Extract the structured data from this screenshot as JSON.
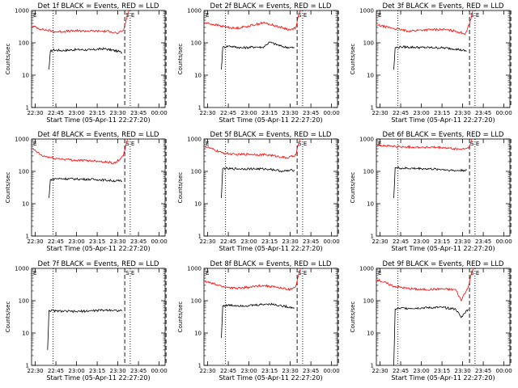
{
  "figure": {
    "background": "#ffffff",
    "colors": {
      "events": "#000000",
      "lld": "#ff0000",
      "axes": "#000000"
    }
  },
  "chart_data": [
    {
      "type": "line",
      "detector": "1f",
      "title": "Det 1f BLACK = Events, RED = LLD",
      "xlabel": "Start Time (05-Apr-11 22:27:20)",
      "ylabel": "Counts/sec",
      "x_ticks": [
        "22:30",
        "22:45",
        "23:00",
        "23:15",
        "23:30",
        "23:45",
        "00:00"
      ],
      "y_ticks": [
        "1",
        "10",
        "100",
        "1000"
      ],
      "yscale": "log",
      "ylim": [
        1,
        1000
      ],
      "markers": {
        "S": "23:35",
        "E": "23:39"
      },
      "series": [
        {
          "name": "Events",
          "color": "#000000",
          "x": [
            "22:40",
            "22:41",
            "22:43",
            "22:50",
            "23:00",
            "23:10",
            "23:20",
            "23:30",
            "23:33"
          ],
          "y": [
            15,
            55,
            60,
            58,
            62,
            60,
            66,
            55,
            50
          ]
        },
        {
          "name": "LLD",
          "color": "#ff0000",
          "x": [
            "22:28",
            "22:35",
            "22:45",
            "23:00",
            "23:15",
            "23:25",
            "23:30",
            "23:34",
            "23:36",
            "23:38"
          ],
          "y": [
            330,
            260,
            220,
            235,
            230,
            225,
            195,
            240,
            500,
            1000
          ]
        }
      ]
    },
    {
      "type": "line",
      "detector": "2f",
      "title": "Det 2f BLACK = Events, RED = LLD",
      "xlabel": "Start Time (05-Apr-11 22:27:20)",
      "ylabel": "Counts/sec",
      "x_ticks": [
        "22:30",
        "22:45",
        "23:00",
        "23:15",
        "23:30",
        "23:45",
        "00:00"
      ],
      "y_ticks": [
        "1",
        "10",
        "100",
        "1000"
      ],
      "yscale": "log",
      "ylim": [
        1,
        1000
      ],
      "markers": {
        "S": "23:35",
        "E": "23:39"
      },
      "series": [
        {
          "name": "Events",
          "color": "#000000",
          "x": [
            "22:40",
            "22:41",
            "22:45",
            "22:55",
            "23:05",
            "23:10",
            "23:15",
            "23:25",
            "23:33"
          ],
          "y": [
            15,
            72,
            80,
            70,
            75,
            72,
            105,
            75,
            70
          ]
        },
        {
          "name": "LLD",
          "color": "#ff0000",
          "x": [
            "22:28",
            "22:40",
            "22:50",
            "23:00",
            "23:10",
            "23:20",
            "23:30",
            "23:34",
            "23:36",
            "23:38"
          ],
          "y": [
            420,
            330,
            280,
            330,
            420,
            330,
            250,
            300,
            700,
            1200
          ]
        }
      ]
    },
    {
      "type": "line",
      "detector": "3f",
      "title": "Det 3f BLACK = Events, RED = LLD",
      "xlabel": "Start Time (05-Apr-11 22:27:20)",
      "ylabel": "Counts/sec",
      "x_ticks": [
        "22:30",
        "22:45",
        "23:00",
        "23:15",
        "23:30",
        "23:45",
        "00:00"
      ],
      "y_ticks": [
        "1",
        "10",
        "100",
        "1000"
      ],
      "yscale": "log",
      "ylim": [
        1,
        1000
      ],
      "markers": {
        "S": "23:35",
        "E": "23:39"
      },
      "series": [
        {
          "name": "Events",
          "color": "#000000",
          "x": [
            "22:40",
            "22:41",
            "22:45",
            "23:00",
            "23:15",
            "23:25",
            "23:33"
          ],
          "y": [
            15,
            70,
            75,
            72,
            70,
            65,
            55
          ]
        },
        {
          "name": "LLD",
          "color": "#ff0000",
          "x": [
            "22:28",
            "22:40",
            "22:50",
            "23:00",
            "23:15",
            "23:25",
            "23:32",
            "23:35",
            "23:38"
          ],
          "y": [
            350,
            280,
            230,
            250,
            260,
            230,
            190,
            400,
            1200
          ]
        }
      ]
    },
    {
      "type": "line",
      "detector": "4f",
      "title": "Det 4f BLACK = Events, RED = LLD",
      "xlabel": "Start Time (05-Apr-11 22:27:20)",
      "ylabel": "Counts/sec",
      "x_ticks": [
        "22:30",
        "22:45",
        "23:00",
        "23:15",
        "23:30",
        "23:45",
        "00:00"
      ],
      "y_ticks": [
        "1",
        "10",
        "100",
        "1000"
      ],
      "yscale": "log",
      "ylim": [
        1,
        1000
      ],
      "markers": {
        "S": "23:35",
        "E": "23:39"
      },
      "series": [
        {
          "name": "Events",
          "color": "#000000",
          "x": [
            "22:40",
            "22:41",
            "22:45",
            "23:00",
            "23:15",
            "23:25",
            "23:33"
          ],
          "y": [
            15,
            55,
            60,
            58,
            56,
            52,
            50
          ]
        },
        {
          "name": "LLD",
          "color": "#ff0000",
          "x": [
            "22:28",
            "22:35",
            "22:45",
            "23:00",
            "23:15",
            "23:28",
            "23:34",
            "23:36",
            "23:38"
          ],
          "y": [
            500,
            300,
            250,
            220,
            210,
            180,
            300,
            700,
            1200
          ]
        }
      ]
    },
    {
      "type": "line",
      "detector": "5f",
      "title": "Det 5f BLACK = Events, RED = LLD",
      "xlabel": "Start Time (05-Apr-11 22:27:20)",
      "ylabel": "Counts/sec",
      "x_ticks": [
        "22:30",
        "22:45",
        "23:00",
        "23:15",
        "23:30",
        "23:45",
        "00:00"
      ],
      "y_ticks": [
        "1",
        "10",
        "100",
        "1000"
      ],
      "yscale": "log",
      "ylim": [
        1,
        1000
      ],
      "markers": {
        "S": "23:35",
        "E": "23:39"
      },
      "series": [
        {
          "name": "Events",
          "color": "#000000",
          "x": [
            "22:40",
            "22:41",
            "22:45",
            "23:00",
            "23:15",
            "23:25",
            "23:33"
          ],
          "y": [
            15,
            125,
            120,
            120,
            118,
            100,
            110
          ]
        },
        {
          "name": "LLD",
          "color": "#ff0000",
          "x": [
            "22:28",
            "22:40",
            "22:50",
            "23:00",
            "23:15",
            "23:28",
            "23:34",
            "23:36",
            "23:38"
          ],
          "y": [
            600,
            380,
            330,
            340,
            320,
            260,
            320,
            700,
            1200
          ]
        }
      ]
    },
    {
      "type": "line",
      "detector": "6f",
      "title": "Det 6f BLACK = Events, RED = LLD",
      "xlabel": "Start Time (05-Apr-11 22:27:20)",
      "ylabel": "Counts/sec",
      "x_ticks": [
        "22:30",
        "22:45",
        "23:00",
        "23:15",
        "23:30",
        "23:45",
        "00:00"
      ],
      "y_ticks": [
        "1",
        "10",
        "100",
        "1000"
      ],
      "yscale": "log",
      "ylim": [
        1,
        1000
      ],
      "markers": {
        "S": "23:35",
        "E": "23:39"
      },
      "series": [
        {
          "name": "Events",
          "color": "#000000",
          "x": [
            "22:40",
            "22:41",
            "22:45",
            "23:00",
            "23:15",
            "23:25",
            "23:33"
          ],
          "y": [
            15,
            130,
            125,
            122,
            115,
            105,
            110
          ]
        },
        {
          "name": "LLD",
          "color": "#ff0000",
          "x": [
            "22:28",
            "22:45",
            "23:00",
            "23:15",
            "23:28",
            "23:34",
            "23:36",
            "23:38"
          ],
          "y": [
            650,
            570,
            560,
            540,
            480,
            520,
            800,
            1300
          ]
        }
      ]
    },
    {
      "type": "line",
      "detector": "7f",
      "title": "Det 7f BLACK = Events, RED = LLD",
      "xlabel": "Start Time (05-Apr-11 22:27:20)",
      "ylabel": "Counts/sec",
      "x_ticks": [
        "22:30",
        "22:45",
        "23:00",
        "23:15",
        "23:30",
        "23:45",
        "00:00"
      ],
      "y_ticks": [
        "1",
        "10",
        "100",
        "1000"
      ],
      "yscale": "log",
      "ylim": [
        1,
        1000
      ],
      "markers": {
        "S": "23:35",
        "E": "23:39"
      },
      "series": [
        {
          "name": "Events",
          "color": "#000000",
          "x": [
            "22:39",
            "22:40",
            "22:45",
            "23:00",
            "23:15",
            "23:25",
            "23:33"
          ],
          "y": [
            3,
            50,
            48,
            46,
            50,
            52,
            48
          ]
        }
      ]
    },
    {
      "type": "line",
      "detector": "8f",
      "title": "Det 8f BLACK = Events, RED = LLD",
      "xlabel": "Start Time (05-Apr-11 22:27:20)",
      "ylabel": "Counts/sec",
      "x_ticks": [
        "22:30",
        "22:45",
        "23:00",
        "23:15",
        "23:30",
        "23:45",
        "00:00"
      ],
      "y_ticks": [
        "1",
        "10",
        "100",
        "1000"
      ],
      "yscale": "log",
      "ylim": [
        1,
        1000
      ],
      "markers": {
        "S": "23:35",
        "E": "23:39"
      },
      "series": [
        {
          "name": "Events",
          "color": "#000000",
          "x": [
            "22:40",
            "22:41",
            "22:45",
            "23:00",
            "23:15",
            "23:25",
            "23:33"
          ],
          "y": [
            7,
            70,
            72,
            70,
            80,
            68,
            60
          ]
        },
        {
          "name": "LLD",
          "color": "#ff0000",
          "x": [
            "22:28",
            "22:40",
            "22:50",
            "23:00",
            "23:10",
            "23:20",
            "23:30",
            "23:34",
            "23:36",
            "23:38"
          ],
          "y": [
            400,
            280,
            240,
            260,
            300,
            260,
            220,
            280,
            600,
            1200
          ]
        }
      ]
    },
    {
      "type": "line",
      "detector": "9f",
      "title": "Det 9f BLACK = Events, RED = LLD",
      "xlabel": "Start Time (05-Apr-11 22:27:20)",
      "ylabel": "Counts/sec",
      "x_ticks": [
        "22:30",
        "22:45",
        "23:00",
        "23:15",
        "23:30",
        "23:45",
        "00:00"
      ],
      "y_ticks": [
        "1",
        "10",
        "100",
        "1000"
      ],
      "yscale": "log",
      "ylim": [
        1,
        1000
      ],
      "markers": {
        "S": "23:35",
        "E": "23:39"
      },
      "series": [
        {
          "name": "Events",
          "color": "#000000",
          "x": [
            "22:40",
            "22:41",
            "22:45",
            "23:00",
            "23:15",
            "23:25",
            "23:29",
            "23:31",
            "23:34"
          ],
          "y": [
            1,
            55,
            58,
            60,
            62,
            55,
            30,
            40,
            55
          ]
        },
        {
          "name": "LLD",
          "color": "#ff0000",
          "x": [
            "22:28",
            "22:40",
            "22:50",
            "23:00",
            "23:15",
            "23:25",
            "23:29",
            "23:31",
            "23:34",
            "23:36",
            "23:38"
          ],
          "y": [
            450,
            280,
            240,
            220,
            230,
            220,
            100,
            160,
            250,
            600,
            1200
          ]
        }
      ]
    }
  ]
}
